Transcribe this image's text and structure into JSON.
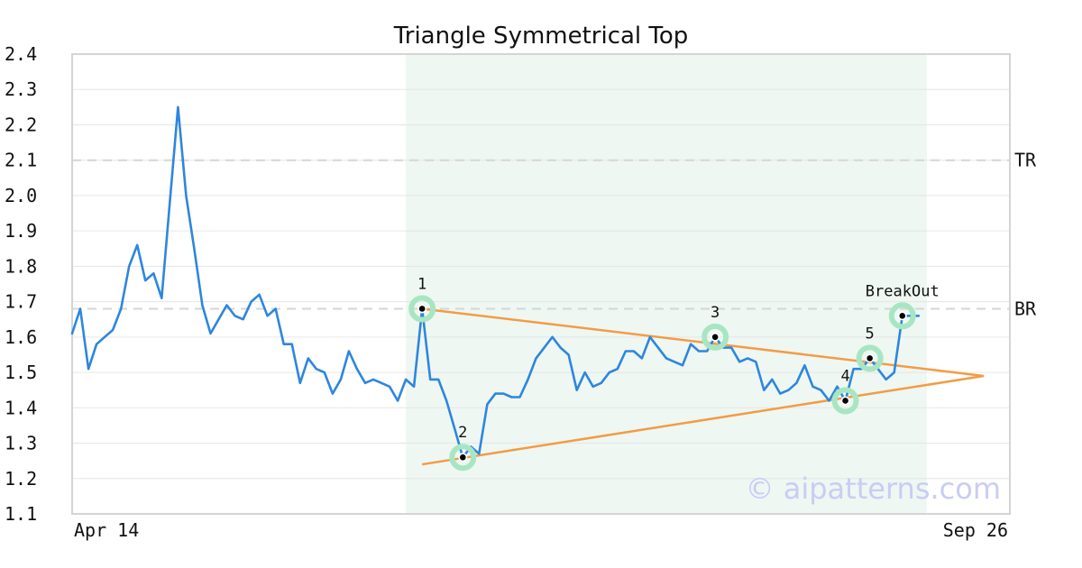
{
  "chart_data": {
    "type": "line",
    "title": "Triangle Symmetrical Top",
    "x_labels": [
      "Apr 14",
      "Sep 26"
    ],
    "ylim": [
      1.1,
      2.4
    ],
    "yticks": [
      "2.4",
      "2.3",
      "2.2",
      "2.1",
      "2.0",
      "1.9",
      "1.8",
      "1.7",
      "1.6",
      "1.5",
      "1.4",
      "1.3",
      "1.2",
      "1.1"
    ],
    "grid": true,
    "series": [
      {
        "color": "#2e86de",
        "values": [
          1.61,
          1.68,
          1.51,
          1.58,
          1.6,
          1.62,
          1.68,
          1.8,
          1.86,
          1.76,
          1.78,
          1.71,
          1.98,
          2.25,
          2.0,
          1.85,
          1.69,
          1.61,
          1.65,
          1.69,
          1.66,
          1.65,
          1.7,
          1.72,
          1.66,
          1.68,
          1.58,
          1.58,
          1.47,
          1.54,
          1.51,
          1.5,
          1.44,
          1.48,
          1.56,
          1.51,
          1.47,
          1.48,
          1.47,
          1.46,
          1.42,
          1.48,
          1.46,
          1.68,
          1.48,
          1.48,
          1.42,
          1.34,
          1.26,
          1.29,
          1.27,
          1.41,
          1.44,
          1.44,
          1.43,
          1.43,
          1.48,
          1.54,
          1.57,
          1.6,
          1.57,
          1.55,
          1.45,
          1.5,
          1.46,
          1.47,
          1.5,
          1.51,
          1.56,
          1.56,
          1.54,
          1.6,
          1.57,
          1.54,
          1.53,
          1.52,
          1.58,
          1.56,
          1.56,
          1.6,
          1.57,
          1.57,
          1.53,
          1.54,
          1.53,
          1.45,
          1.48,
          1.44,
          1.45,
          1.47,
          1.52,
          1.46,
          1.45,
          1.42,
          1.46,
          1.42,
          1.51,
          1.51,
          1.54,
          1.51,
          1.48,
          1.5,
          1.66,
          1.66,
          1.66
        ]
      }
    ],
    "levels": [
      {
        "label": "TR",
        "value": 2.1
      },
      {
        "label": "BR",
        "value": 1.68
      }
    ],
    "pattern_region": {
      "start_index": 41,
      "end_index": 105
    },
    "trendlines": [
      {
        "color": "#f39c45",
        "from": {
          "index": 43,
          "value": 1.68
        },
        "to": {
          "index": 112,
          "value": 1.49
        }
      },
      {
        "color": "#f39c45",
        "from": {
          "index": 43,
          "value": 1.24
        },
        "to": {
          "index": 112,
          "value": 1.49
        }
      }
    ],
    "points": [
      {
        "label": "1",
        "index": 43,
        "value": 1.68,
        "label_pos": "above"
      },
      {
        "label": "2",
        "index": 48,
        "value": 1.26,
        "label_pos": "above"
      },
      {
        "label": "3",
        "index": 79,
        "value": 1.6,
        "label_pos": "above"
      },
      {
        "label": "4",
        "index": 95,
        "value": 1.42,
        "label_pos": "above"
      },
      {
        "label": "5",
        "index": 98,
        "value": 1.54,
        "label_pos": "above"
      },
      {
        "label": "BreakOut",
        "index": 102,
        "value": 1.66,
        "label_pos": "above"
      }
    ]
  },
  "watermark": "© aipatterns.com",
  "colors": {
    "region": "#eef7f2",
    "marker_halo": "#a8e6c3",
    "grid": "#e6e6e6",
    "level_line": "#d6d6d6"
  }
}
